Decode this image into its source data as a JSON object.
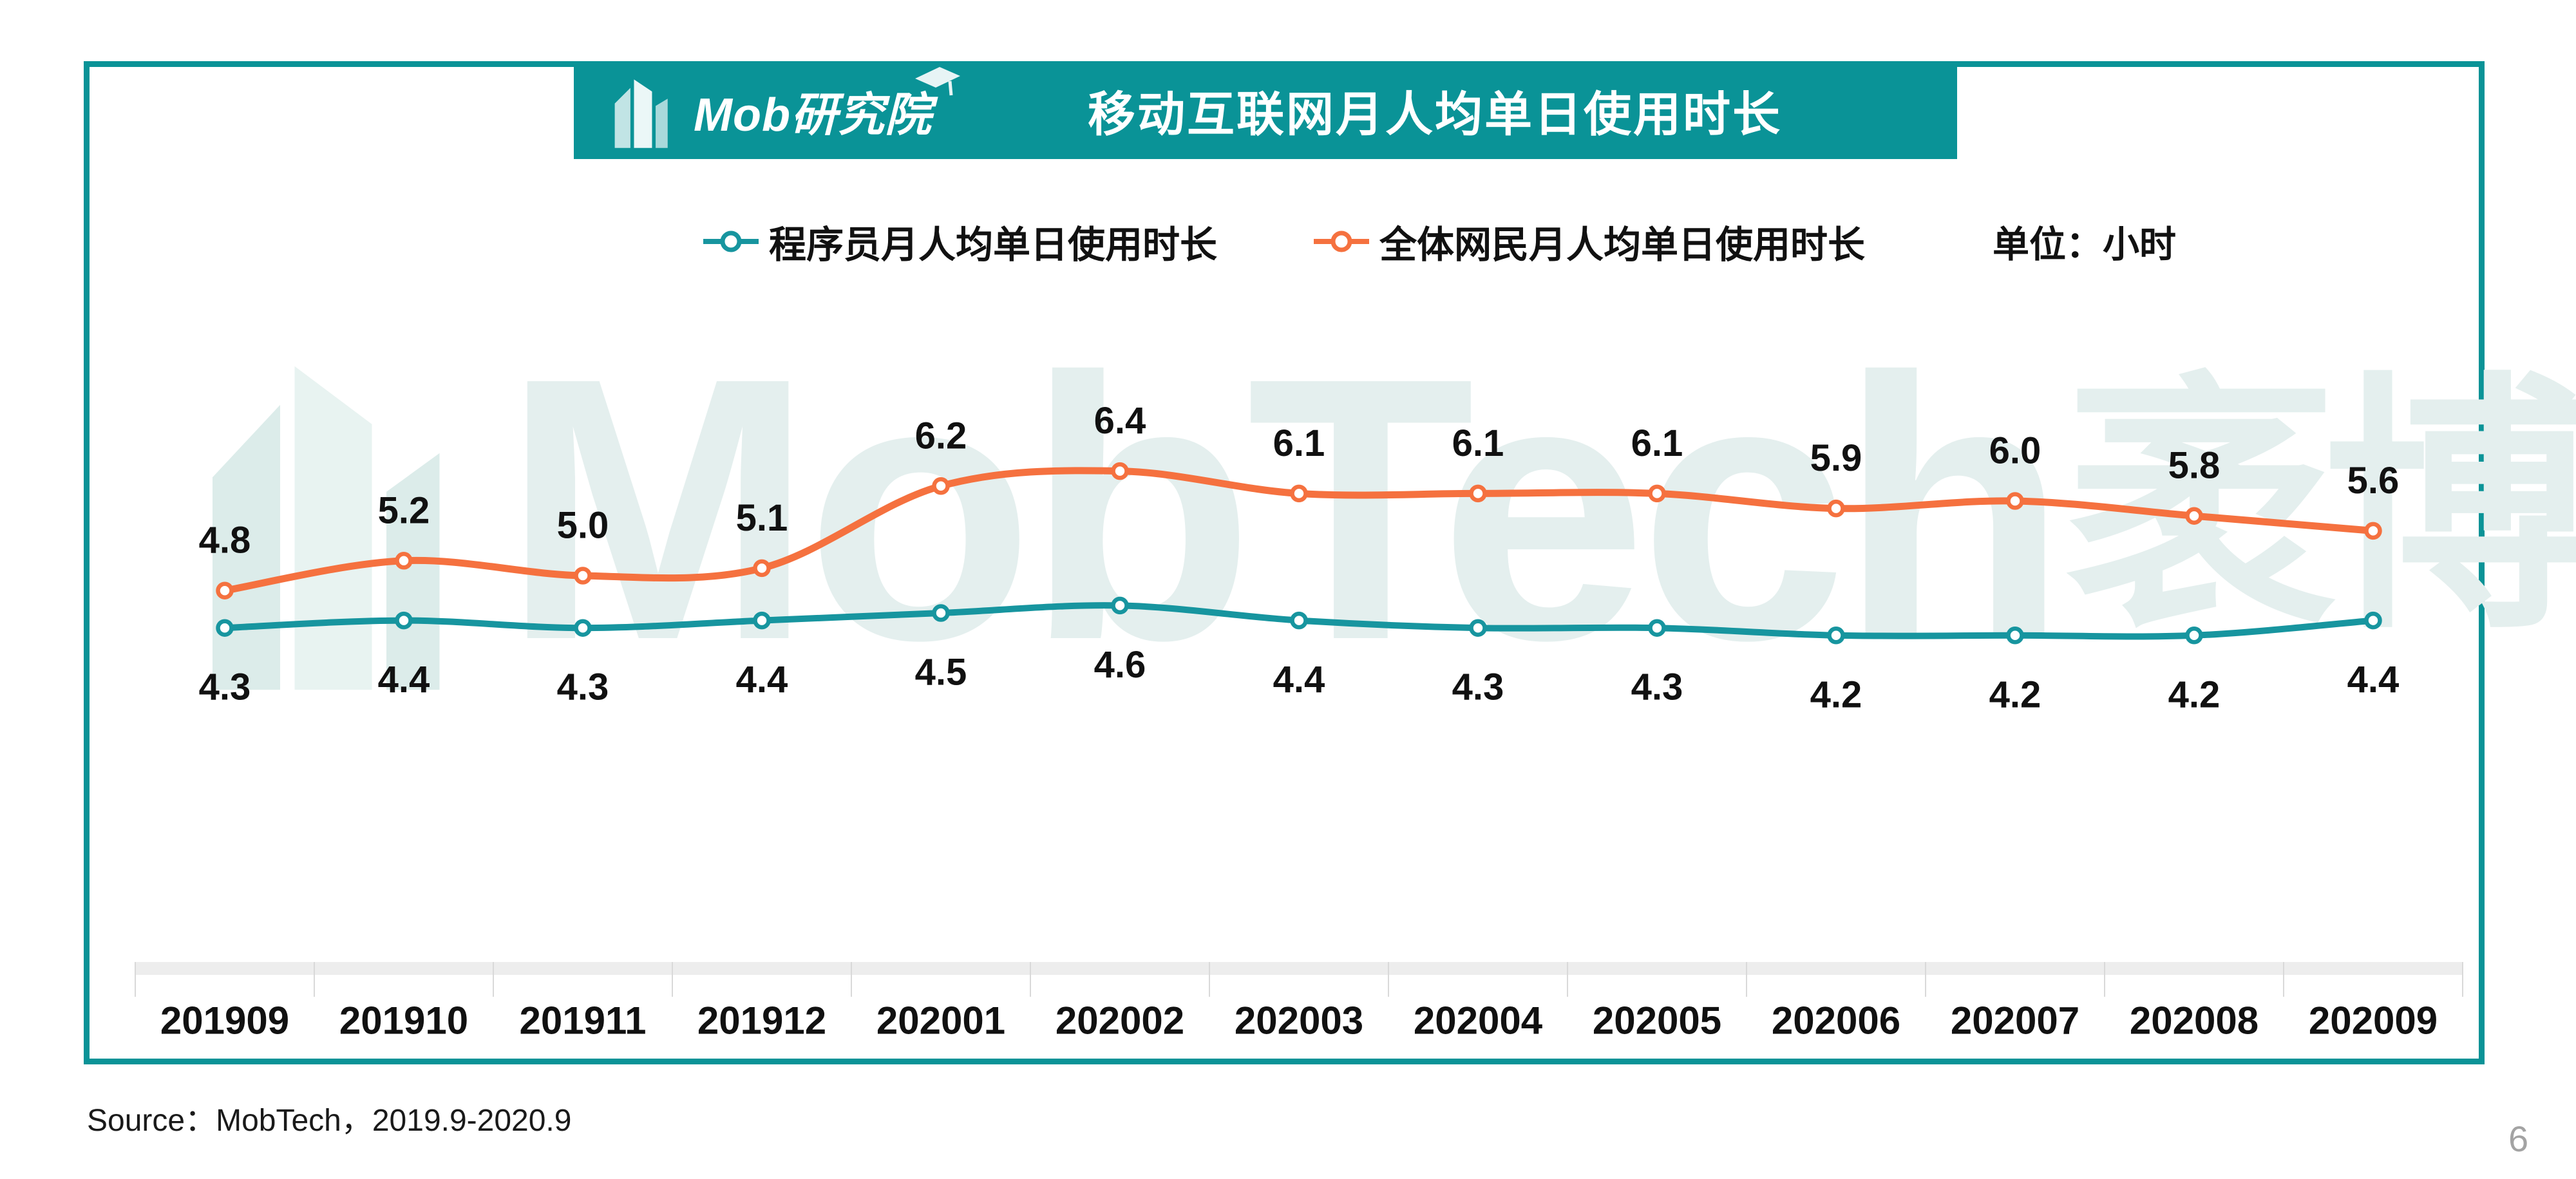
{
  "header": {
    "logo_text": "Mob研究院",
    "title": "移动互联网月人均单日使用时长"
  },
  "legend": {
    "unit_label": "单位：小时"
  },
  "watermark": {
    "brand_latin": "MobTech",
    "brand_cjk": "袤博"
  },
  "footer": {
    "source": "Source：MobTech，2019.9-2020.9",
    "page_number": "6"
  },
  "theme": {
    "banner_teal": "#0a9397",
    "card_border_teal": "#0a9397",
    "series_teal": "#17959f",
    "series_orange": "#f5713f",
    "watermark_teal": "#e4efee",
    "axis_band_gray": "#ededed",
    "axis_tick_gray": "#d9d9d9",
    "label_black": "#111111",
    "page_number_gray": "#a3a3a3"
  },
  "chart_data": {
    "type": "line",
    "title": "移动互联网月人均单日使用时长",
    "unit": "小时",
    "categories": [
      "201909",
      "201910",
      "201911",
      "201912",
      "202001",
      "202002",
      "202003",
      "202004",
      "202005",
      "202006",
      "202007",
      "202008",
      "202009"
    ],
    "series": [
      {
        "name": "程序员月人均单日使用时长",
        "color": "#17959f",
        "values": [
          4.3,
          4.4,
          4.3,
          4.4,
          4.5,
          4.6,
          4.4,
          4.3,
          4.3,
          4.2,
          4.2,
          4.2,
          4.4
        ],
        "label_position": "below",
        "line_width": 10
      },
      {
        "name": "全体网民月人均单日使用时长",
        "color": "#f5713f",
        "values": [
          4.8,
          5.2,
          5.0,
          5.1,
          6.2,
          6.4,
          6.1,
          6.1,
          6.1,
          5.9,
          6.0,
          5.8,
          5.6
        ],
        "label_position": "above",
        "line_width": 11
      }
    ],
    "ylim": [
      3.6,
      7.0
    ],
    "grid": false,
    "legend_position": "top",
    "marker": "open-circle",
    "smooth": true,
    "data_labels": true
  }
}
